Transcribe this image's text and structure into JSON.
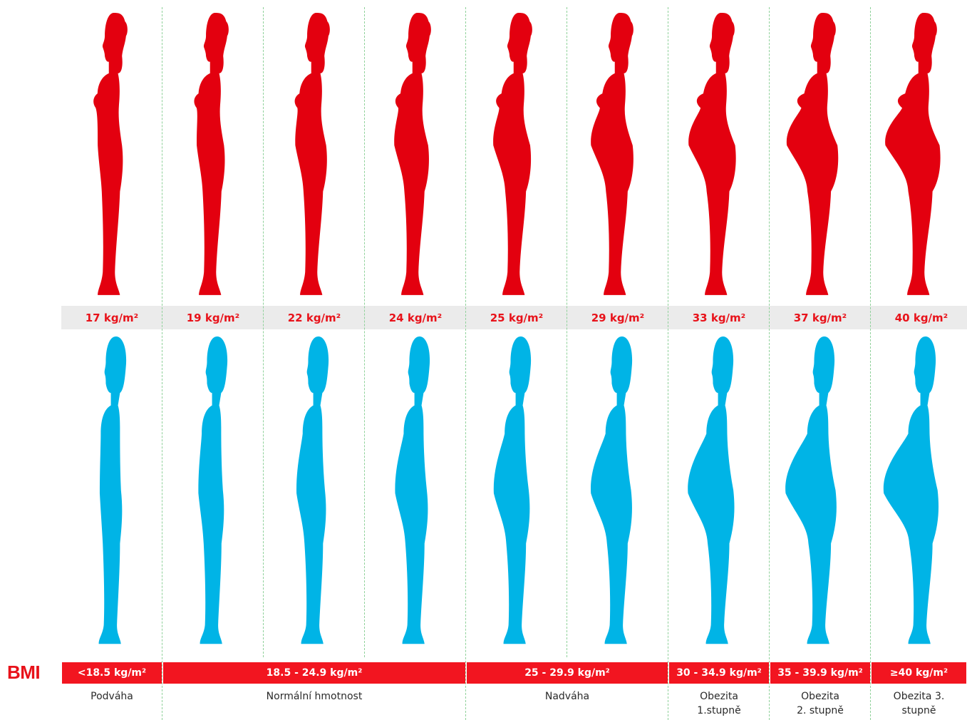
{
  "colors": {
    "female": "#e3000f",
    "male": "#00b4e6",
    "accent": "#e8121a",
    "bar": "#f21520",
    "strip": "#ebebeb"
  },
  "figures": [
    {
      "bmi_value": "17 kg/m²",
      "level": 0.0
    },
    {
      "bmi_value": "19 kg/m²",
      "level": 0.1
    },
    {
      "bmi_value": "22 kg/m²",
      "level": 0.22
    },
    {
      "bmi_value": "24 kg/m²",
      "level": 0.32
    },
    {
      "bmi_value": "25 kg/m²",
      "level": 0.42
    },
    {
      "bmi_value": "29 kg/m²",
      "level": 0.58
    },
    {
      "bmi_value": "33 kg/m²",
      "level": 0.74
    },
    {
      "bmi_value": "37 kg/m²",
      "level": 0.88
    },
    {
      "bmi_value": "40 kg/m²",
      "level": 1.0
    }
  ],
  "bmi_label": "BMI",
  "categories": [
    {
      "range": "<18.5 kg/m²",
      "name": "Podváha",
      "columns": 1
    },
    {
      "range": "18.5 - 24.9 kg/m²",
      "name": "Normální hmotnost",
      "columns": 3
    },
    {
      "range": "25 - 29.9 kg/m²",
      "name": "Nadváha",
      "columns": 2
    },
    {
      "range": "30 - 34.9 kg/m²",
      "name": "Obezita\n1.stupně",
      "columns": 1
    },
    {
      "range": "35 - 39.9 kg/m²",
      "name": "Obezita\n2. stupně",
      "columns": 1
    },
    {
      "range": "≥40 kg/m²",
      "name": "Obezita 3.\nstupně",
      "columns": 1
    }
  ]
}
